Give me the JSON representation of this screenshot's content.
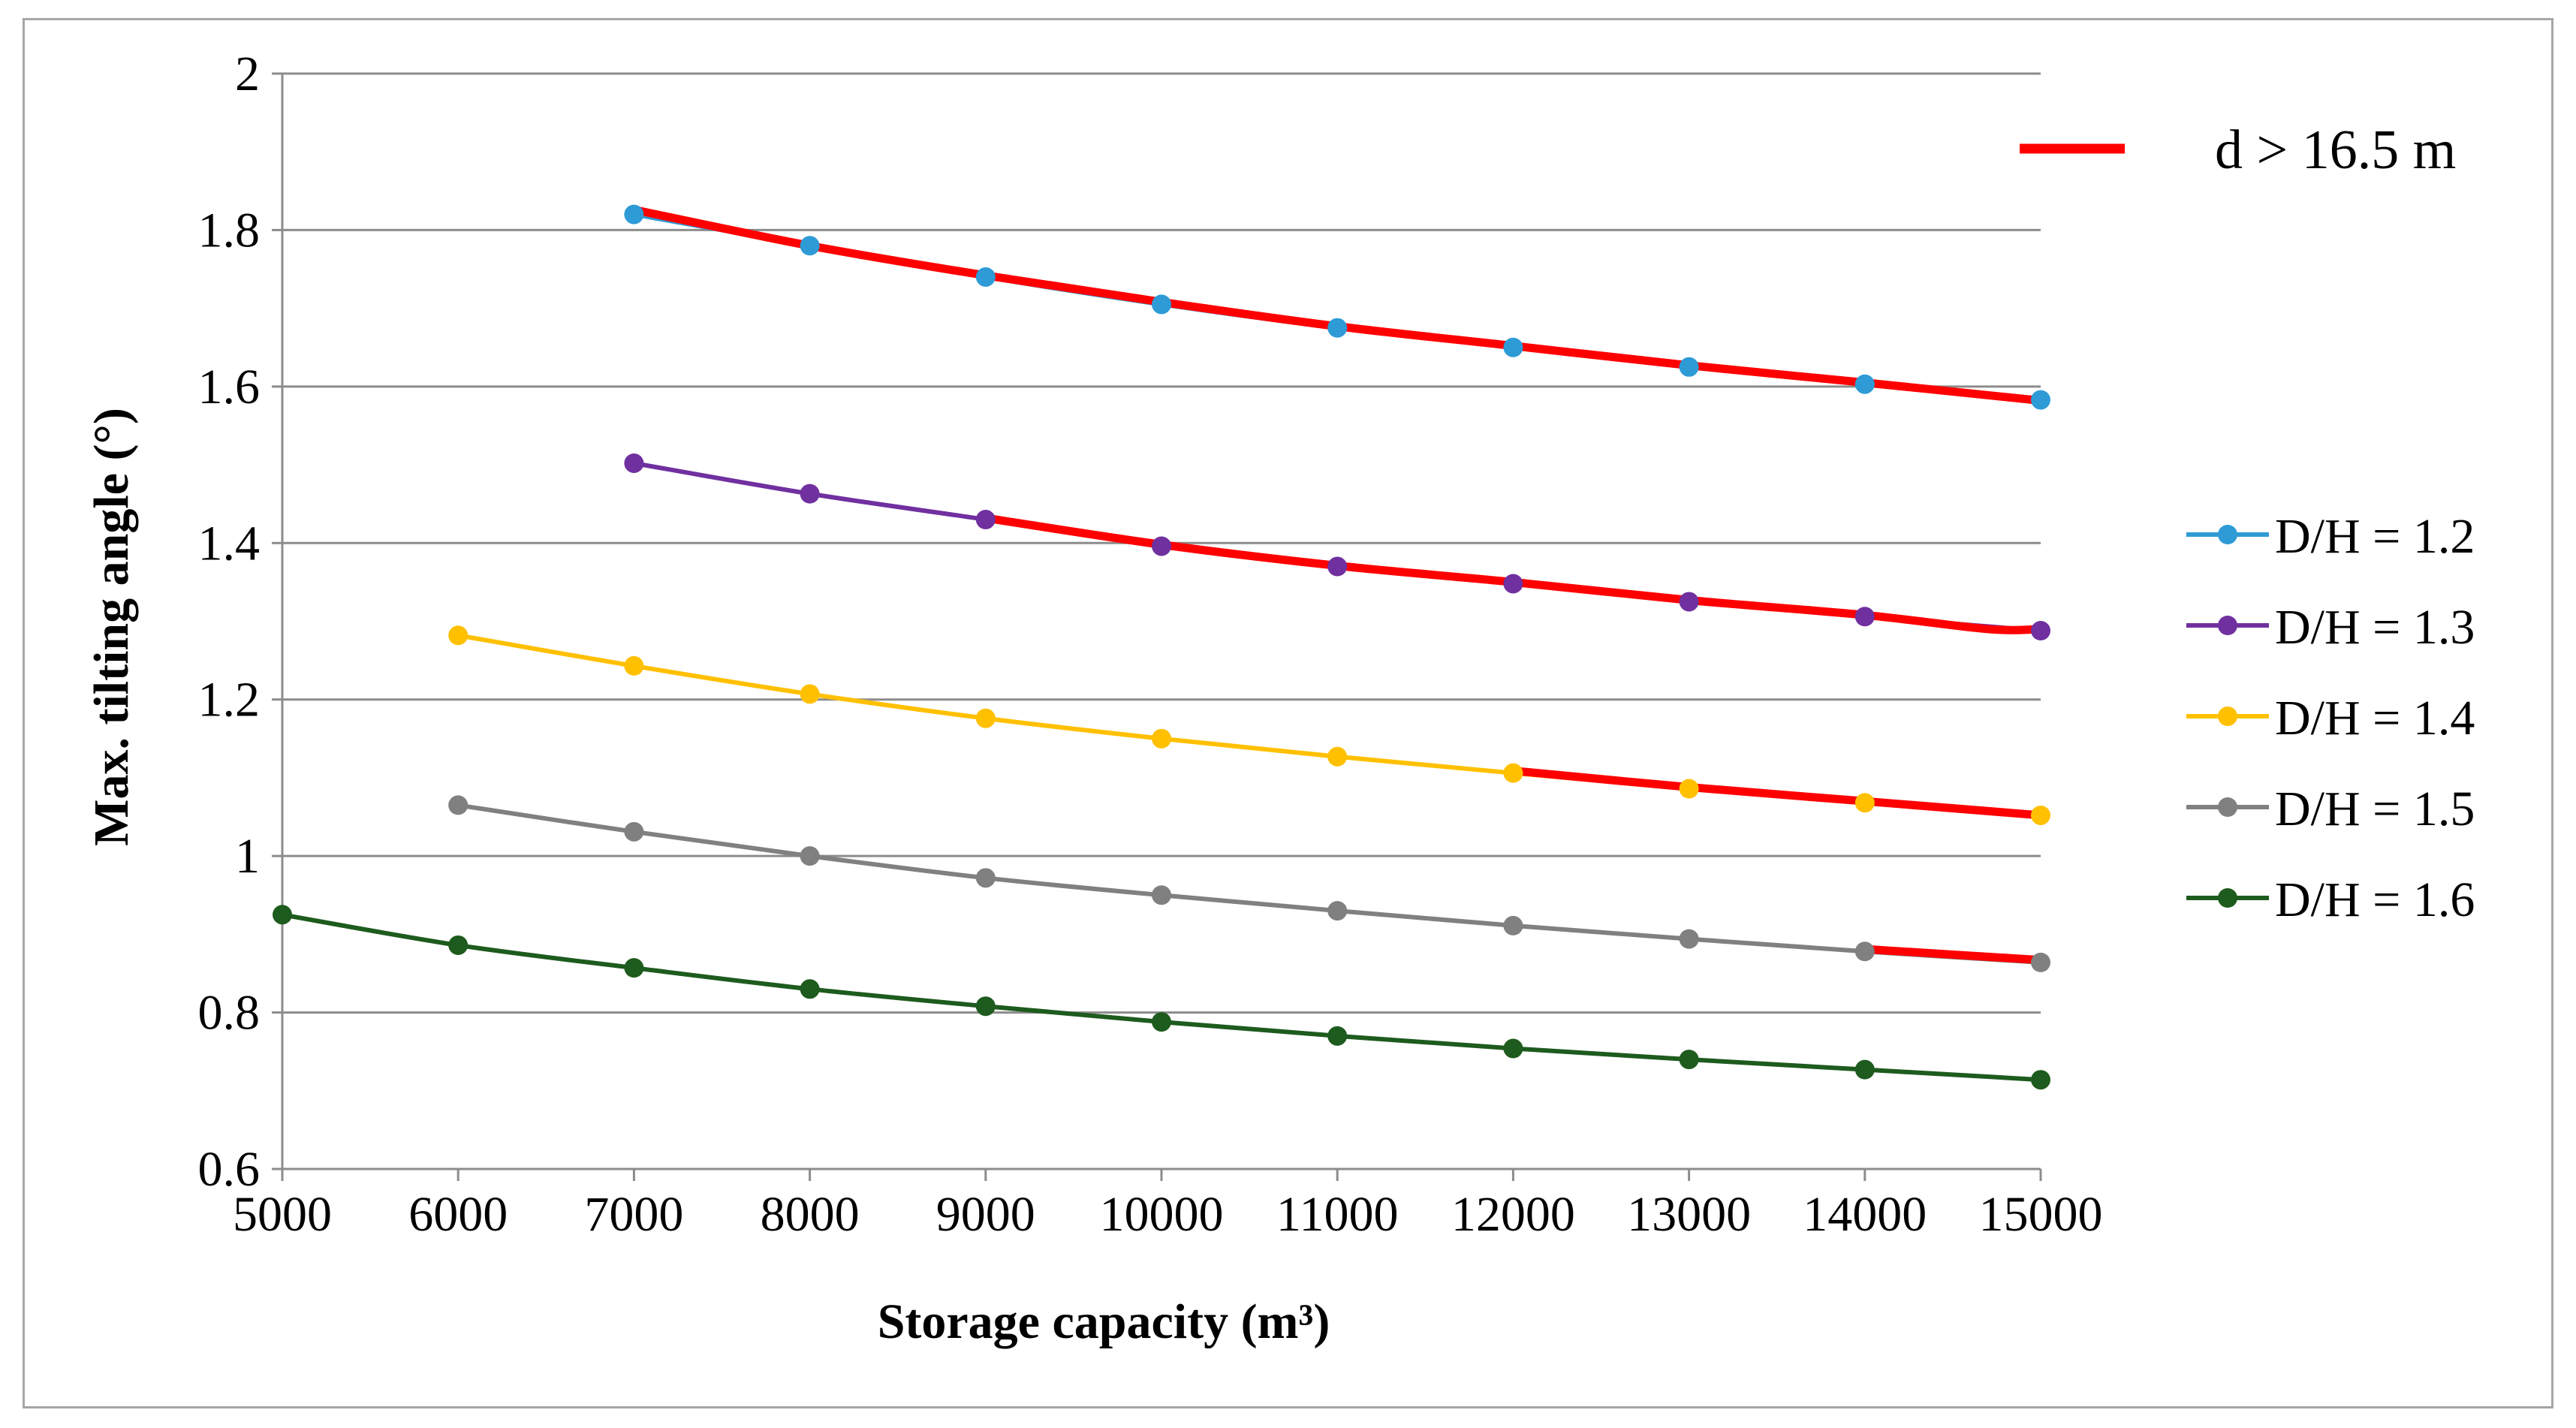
{
  "chart_data": {
    "type": "line",
    "title": "",
    "xlabel": "Storage capacity (m³)",
    "ylabel": "Max. tilting angle (°)",
    "xlim": [
      5000,
      15000
    ],
    "ylim": [
      0.6,
      2.0
    ],
    "xticks": [
      5000,
      6000,
      7000,
      8000,
      9000,
      10000,
      11000,
      12000,
      13000,
      14000,
      15000
    ],
    "yticks": [
      0.6,
      0.8,
      1,
      1.2,
      1.4,
      1.6,
      1.8,
      2
    ],
    "ytick_labels": [
      "0.6",
      "0.8",
      "1",
      "1.2",
      "1.4",
      "1.6",
      "1.8",
      "2"
    ],
    "grid": true,
    "legend_position": "right",
    "series": [
      {
        "name": "D/H = 1.2",
        "color": "#2e9bd6",
        "x": [
          7000,
          8000,
          9000,
          10000,
          11000,
          12000,
          13000,
          14000,
          15000
        ],
        "y": [
          1.82,
          1.78,
          1.74,
          1.705,
          1.675,
          1.65,
          1.625,
          1.603,
          1.583
        ]
      },
      {
        "name": "D/H = 1.3",
        "color": "#7030a0",
        "x": [
          7000,
          8000,
          9000,
          10000,
          11000,
          12000,
          13000,
          14000,
          15000
        ],
        "y": [
          1.502,
          1.463,
          1.43,
          1.396,
          1.37,
          1.348,
          1.325,
          1.306,
          1.288
        ]
      },
      {
        "name": "D/H = 1.4",
        "color": "#ffc000",
        "x": [
          6000,
          7000,
          8000,
          9000,
          10000,
          11000,
          12000,
          13000,
          14000,
          15000
        ],
        "y": [
          1.282,
          1.243,
          1.207,
          1.176,
          1.15,
          1.127,
          1.106,
          1.086,
          1.068,
          1.052
        ]
      },
      {
        "name": "D/H = 1.5",
        "color": "#808080",
        "x": [
          6000,
          7000,
          8000,
          9000,
          10000,
          11000,
          12000,
          13000,
          14000,
          15000
        ],
        "y": [
          1.065,
          1.031,
          1.0,
          0.972,
          0.95,
          0.93,
          0.911,
          0.894,
          0.878,
          0.864
        ]
      },
      {
        "name": "D/H = 1.6",
        "color": "#1e5b1e",
        "x": [
          5000,
          6000,
          7000,
          8000,
          9000,
          10000,
          11000,
          12000,
          13000,
          14000,
          15000
        ],
        "y": [
          0.925,
          0.886,
          0.857,
          0.83,
          0.808,
          0.788,
          0.77,
          0.754,
          0.74,
          0.727,
          0.714
        ]
      }
    ],
    "highlight": {
      "name": "d > 16.5 m",
      "color": "#ff0000",
      "segments": [
        {
          "x": [
            7000,
            8000,
            9000,
            10000,
            11000,
            12000,
            13000,
            14000,
            15000
          ],
          "y": [
            1.826,
            1.78,
            1.742,
            1.708,
            1.677,
            1.652,
            1.627,
            1.605,
            1.582
          ]
        },
        {
          "x": [
            9000,
            10000,
            11000,
            12000,
            13000,
            14000,
            14700,
            15000
          ],
          "y": [
            1.432,
            1.398,
            1.371,
            1.35,
            1.327,
            1.308,
            1.29,
            1.29
          ]
        },
        {
          "x": [
            12000,
            13000,
            14000,
            15000
          ],
          "y": [
            1.109,
            1.088,
            1.07,
            1.052
          ]
        },
        {
          "x": [
            14000,
            15000
          ],
          "y": [
            0.881,
            0.867
          ]
        }
      ]
    }
  }
}
